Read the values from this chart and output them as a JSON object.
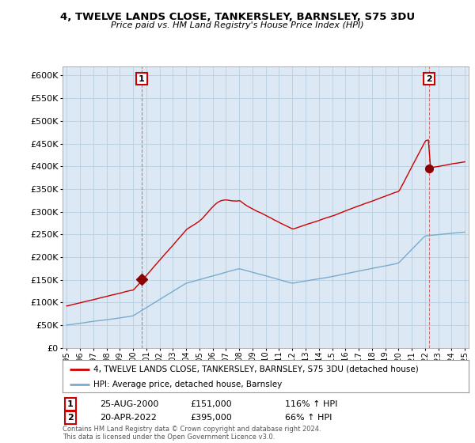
{
  "title": "4, TWELVE LANDS CLOSE, TANKERSLEY, BARNSLEY, S75 3DU",
  "subtitle": "Price paid vs. HM Land Registry's House Price Index (HPI)",
  "legend_line1": "4, TWELVE LANDS CLOSE, TANKERSLEY, BARNSLEY, S75 3DU (detached house)",
  "legend_line2": "HPI: Average price, detached house, Barnsley",
  "annotation1": {
    "label": "1",
    "date": "25-AUG-2000",
    "price": "£151,000",
    "hpi": "116% ↑ HPI",
    "year": 2000.65,
    "value": 151000
  },
  "annotation2": {
    "label": "2",
    "date": "20-APR-2022",
    "price": "£395,000",
    "hpi": "66% ↑ HPI",
    "year": 2022.3,
    "value": 395000
  },
  "footer": "Contains HM Land Registry data © Crown copyright and database right 2024.\nThis data is licensed under the Open Government Licence v3.0.",
  "red_color": "#cc0000",
  "blue_color": "#7aaacc",
  "plot_bg": "#dce9f5",
  "ylim": [
    0,
    620000
  ],
  "yticks": [
    0,
    50000,
    100000,
    150000,
    200000,
    250000,
    300000,
    350000,
    400000,
    450000,
    500000,
    550000,
    600000
  ],
  "background_color": "#ffffff",
  "grid_color": "#b8cfe0"
}
